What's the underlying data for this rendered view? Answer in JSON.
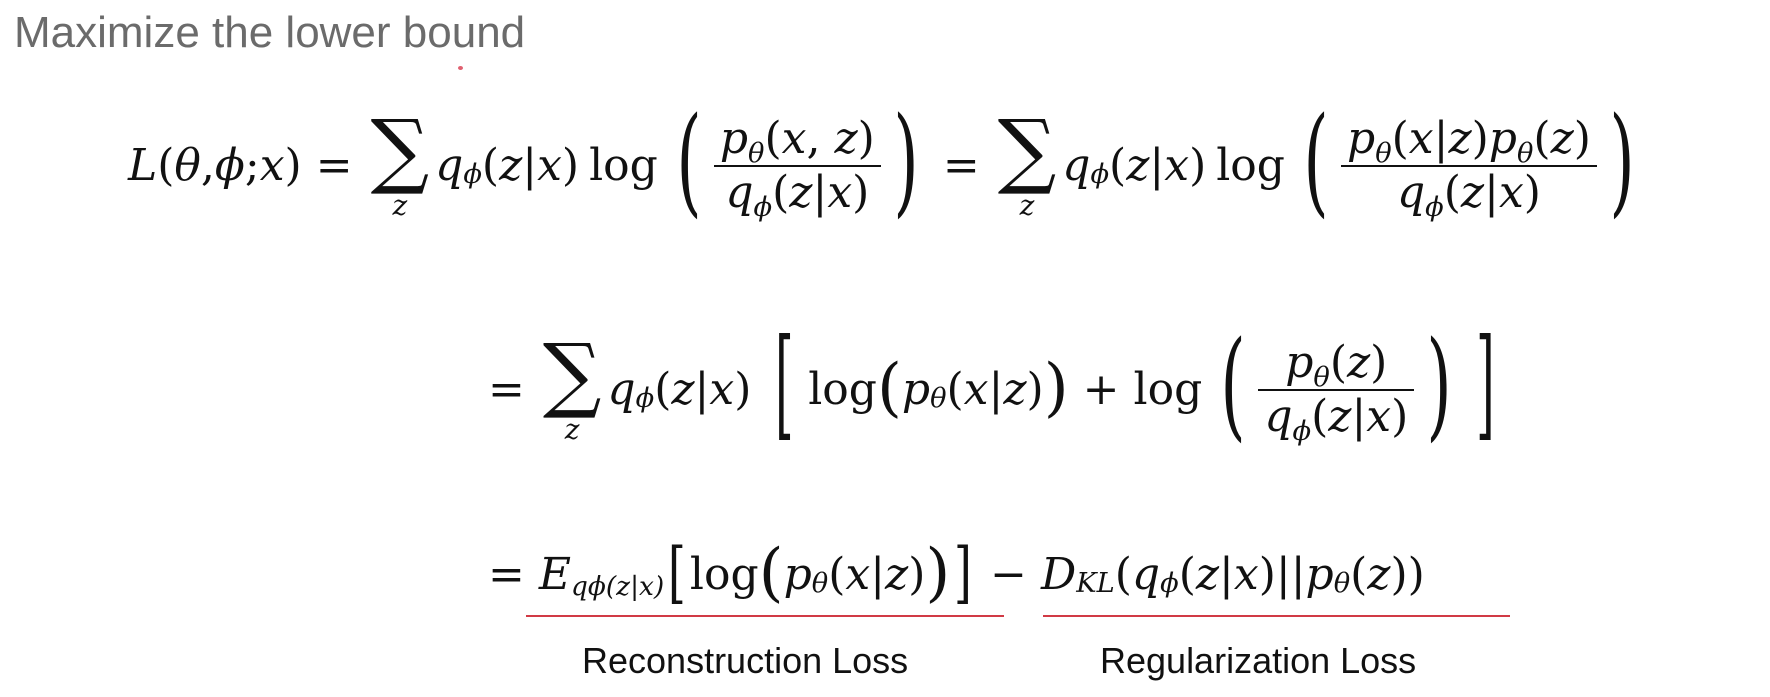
{
  "slide": {
    "title": "Maximize the lower bound",
    "labels": {
      "reconstruction": "Reconstruction Loss",
      "regularization": "Regularization Loss"
    },
    "colors": {
      "title": "#6b6b6b",
      "underline": "#d13a45",
      "text": "#111111"
    }
  },
  "sym": {
    "L": "L",
    "theta": "θ",
    "phi": "ϕ",
    "x": "x",
    "z": "z",
    "p": "p",
    "q": "q",
    "E": "E",
    "D": "D",
    "KL": "KL",
    "eq": "=",
    "plus": "+",
    "minus": "−",
    "sigma": "∑",
    "log": "log",
    "lp": "(",
    "rp": ")",
    "lb": "[",
    "rb": "]",
    "bar": "|",
    "dbar": "||",
    "comma": ", ",
    "semi": "; ",
    "qphi_zx_sub": "qϕ(z|x)"
  }
}
